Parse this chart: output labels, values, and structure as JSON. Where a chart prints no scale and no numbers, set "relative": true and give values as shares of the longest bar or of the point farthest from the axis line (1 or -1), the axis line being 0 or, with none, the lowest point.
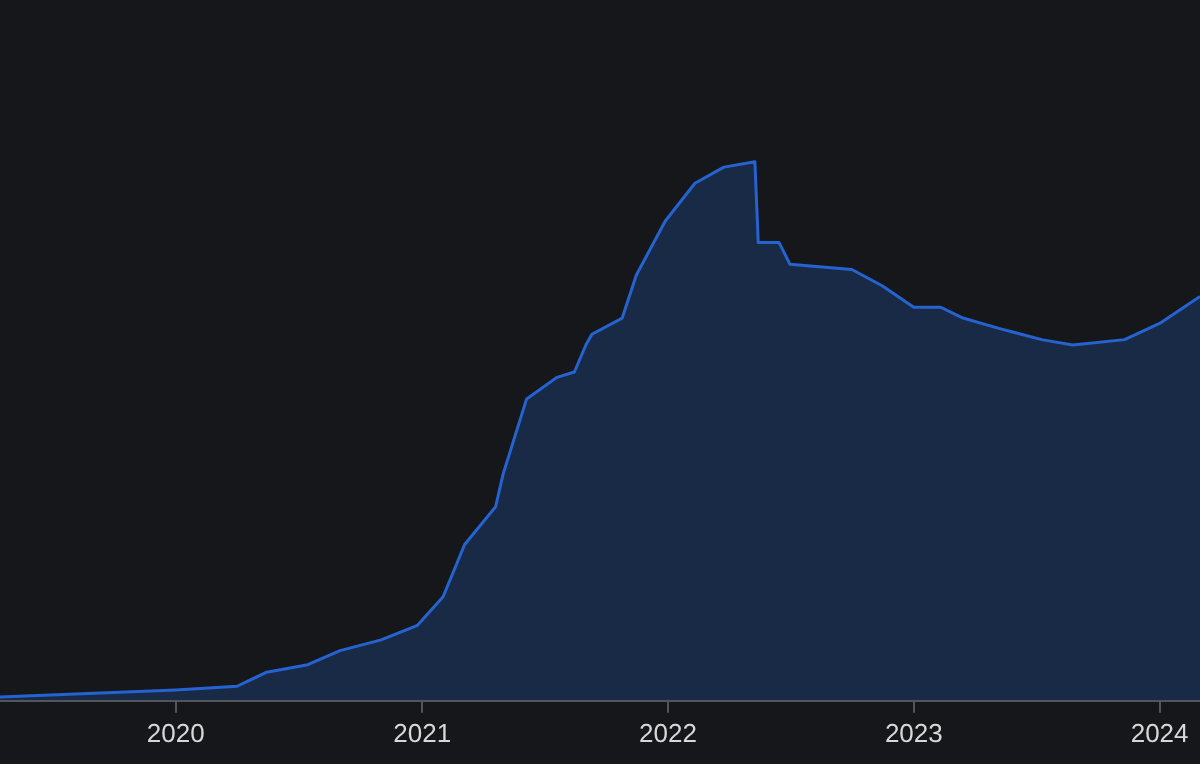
{
  "chart_data": {
    "type": "area",
    "relative": true,
    "x": [
      "2019-04-15",
      "2020-01-01",
      "2020-04-01",
      "2020-05-15",
      "2020-07-15",
      "2020-09-01",
      "2020-11-01",
      "2020-12-25",
      "2021-02-01",
      "2021-03-05",
      "2021-04-20",
      "2021-05-01",
      "2021-06-05",
      "2021-07-20",
      "2021-08-15",
      "2021-09-01",
      "2021-09-10",
      "2021-10-25",
      "2021-11-15",
      "2021-12-28",
      "2022-02-10",
      "2022-03-25",
      "2022-05-10",
      "2022-05-15",
      "2022-06-15",
      "2022-07-01",
      "2022-10-01",
      "2022-11-15",
      "2023-01-01",
      "2023-02-10",
      "2023-03-15",
      "2023-05-10",
      "2023-07-10",
      "2023-08-25",
      "2023-11-10",
      "2024-01-01",
      "2024-03-01"
    ],
    "series": [
      {
        "color": "#2563d0",
        "values": [
          0.007,
          0.02,
          0.027,
          0.053,
          0.067,
          0.093,
          0.113,
          0.14,
          0.193,
          0.29,
          0.36,
          0.42,
          0.56,
          0.6,
          0.61,
          0.66,
          0.68,
          0.71,
          0.79,
          0.89,
          0.96,
          0.99,
          1.0,
          0.85,
          0.85,
          0.81,
          0.8,
          0.77,
          0.73,
          0.73,
          0.71,
          0.69,
          0.67,
          0.66,
          0.67,
          0.7,
          0.75
        ]
      }
    ],
    "xlim": [
      "2019-04-15",
      "2024-03-01"
    ],
    "xticks": [
      "2020",
      "2021",
      "2022",
      "2023",
      "2024"
    ],
    "legend": false
  }
}
